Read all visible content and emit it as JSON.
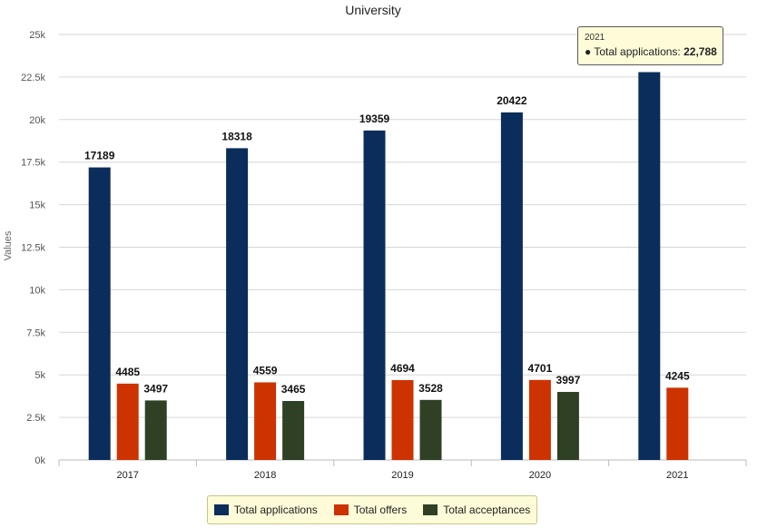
{
  "chart_data": {
    "type": "bar",
    "title": "University",
    "ylabel": "Values",
    "xlabel": "",
    "ylim": [
      0,
      25000
    ],
    "y_ticks": [
      0,
      2500,
      5000,
      7500,
      10000,
      12500,
      15000,
      17500,
      20000,
      22500,
      25000
    ],
    "y_tick_labels": [
      "0k",
      "2.5k",
      "5k",
      "7.5k",
      "10k",
      "12.5k",
      "15k",
      "17.5k",
      "20k",
      "22.5k",
      "25k"
    ],
    "grid": true,
    "legend_position": "bottom-center",
    "categories": [
      "2017",
      "2018",
      "2019",
      "2020",
      "2021"
    ],
    "series": [
      {
        "name": "Total applications",
        "color": "#0b2d5b",
        "values": [
          17189,
          18318,
          19359,
          20422,
          22788
        ],
        "labels": [
          "17189",
          "18318",
          "19359",
          "20422",
          null
        ]
      },
      {
        "name": "Total offers",
        "color": "#cc3300",
        "values": [
          4485,
          4559,
          4694,
          4701,
          4245
        ],
        "labels": [
          "4485",
          "4559",
          "4694",
          "4701",
          "4245"
        ]
      },
      {
        "name": "Total acceptances",
        "color": "#2f4024",
        "values": [
          3497,
          3465,
          3528,
          3997,
          null
        ],
        "labels": [
          "3497",
          "3465",
          "3528",
          "3997",
          null
        ]
      }
    ]
  },
  "tooltip": {
    "year": "2021",
    "bullet": "●",
    "series": "Total applications:",
    "value": "22,788"
  }
}
